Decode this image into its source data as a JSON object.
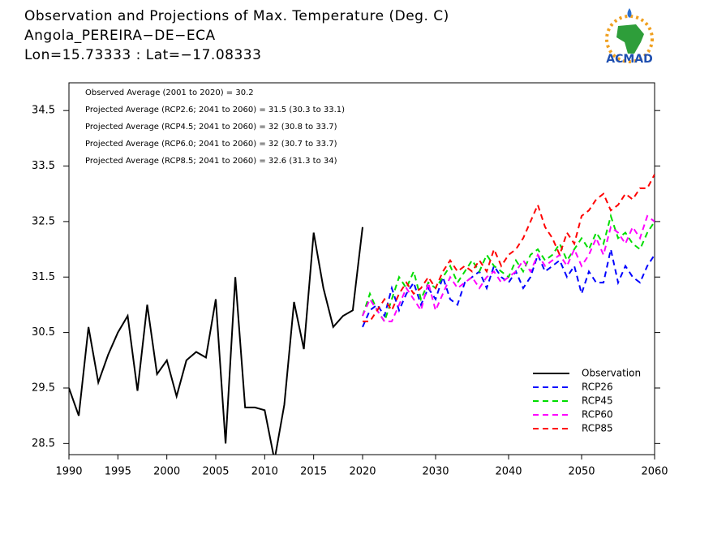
{
  "chart_data": {
    "type": "line",
    "title": "Observation and Projections of Max. Temperature (Deg. C)",
    "subtitle": "Angola_PEREIRA−DE−ECA",
    "location": "Lon=15.73333 : Lat=−17.08333",
    "logo_text": "ACMAD",
    "annotations": [
      "Observed Average (2001 to 2020) = 30.2",
      "Projected Average (RCP2.6; 2041 to 2060) = 31.5 (30.3 to 33.1)",
      "Projected Average (RCP4.5; 2041 to 2060) = 32 (30.8 to 33.7)",
      "Projected Average (RCP6.0; 2041 to 2060) = 32 (30.7 to 33.7)",
      "Projected Average (RCP8.5; 2041 to 2060) = 32.6 (31.3 to 34)"
    ],
    "x": [
      1990,
      1991,
      1992,
      1993,
      1994,
      1995,
      1996,
      1997,
      1998,
      1999,
      2000,
      2001,
      2002,
      2003,
      2004,
      2005,
      2006,
      2007,
      2008,
      2009,
      2010,
      2011,
      2012,
      2013,
      2014,
      2015,
      2016,
      2017,
      2018,
      2019,
      2020,
      2021,
      2022,
      2023,
      2024,
      2025,
      2026,
      2027,
      2028,
      2029,
      2030,
      2031,
      2032,
      2033,
      2034,
      2035,
      2036,
      2037,
      2038,
      2039,
      2040,
      2041,
      2042,
      2043,
      2044,
      2045,
      2046,
      2047,
      2048,
      2049,
      2050,
      2051,
      2052,
      2053,
      2054,
      2055,
      2056,
      2057,
      2058,
      2059,
      2060
    ],
    "xlim": [
      1990,
      2060
    ],
    "xticks": [
      1990,
      1995,
      2000,
      2005,
      2010,
      2015,
      2020,
      2030,
      2040,
      2050,
      2060
    ],
    "ylim": [
      28.3,
      35.0
    ],
    "yticks": [
      28.5,
      29.5,
      30.5,
      31.5,
      32.5,
      33.5,
      34.5
    ],
    "legend": "lower right",
    "series": [
      {
        "name": "Observation",
        "color": "#000000",
        "linestyle": "solid",
        "values": [
          29.5,
          29.0,
          30.6,
          29.6,
          30.1,
          30.5,
          30.8,
          29.45,
          31.0,
          29.75,
          30.0,
          29.35,
          30.0,
          30.15,
          30.05,
          31.1,
          28.5,
          31.5,
          29.15,
          29.15,
          29.1,
          28.2,
          29.2,
          31.05,
          30.2,
          32.3,
          31.3,
          30.6,
          30.8,
          30.9,
          32.4,
          null,
          null,
          null,
          null,
          null,
          null,
          null,
          null,
          null,
          null,
          null,
          null,
          null,
          null,
          null,
          null,
          null,
          null,
          null,
          null,
          null,
          null,
          null,
          null,
          null,
          null,
          null,
          null,
          null,
          null,
          null,
          null,
          null,
          null,
          null,
          null,
          null,
          null,
          null,
          null
        ]
      },
      {
        "name": "RCP26",
        "color": "#0000ff",
        "linestyle": "dashed",
        "values": [
          null,
          null,
          null,
          null,
          null,
          null,
          null,
          null,
          null,
          null,
          null,
          null,
          null,
          null,
          null,
          null,
          null,
          null,
          null,
          null,
          null,
          null,
          null,
          null,
          null,
          null,
          null,
          null,
          null,
          null,
          30.6,
          30.9,
          31.0,
          30.8,
          31.3,
          30.9,
          31.2,
          31.4,
          31.0,
          31.3,
          31.1,
          31.5,
          31.1,
          31.0,
          31.4,
          31.5,
          31.6,
          31.3,
          31.7,
          31.5,
          31.4,
          31.6,
          31.3,
          31.5,
          31.9,
          31.6,
          31.7,
          31.8,
          31.5,
          31.7,
          31.2,
          31.6,
          31.4,
          31.4,
          32.0,
          31.4,
          31.7,
          31.5,
          31.4,
          31.7,
          31.9
        ]
      },
      {
        "name": "RCP45",
        "color": "#00dd00",
        "linestyle": "dashed",
        "values": [
          null,
          null,
          null,
          null,
          null,
          null,
          null,
          null,
          null,
          null,
          null,
          null,
          null,
          null,
          null,
          null,
          null,
          null,
          null,
          null,
          null,
          null,
          null,
          null,
          null,
          null,
          null,
          null,
          null,
          null,
          30.8,
          31.2,
          30.9,
          30.7,
          31.1,
          31.5,
          31.3,
          31.6,
          31.1,
          31.4,
          31.3,
          31.5,
          31.7,
          31.4,
          31.6,
          31.8,
          31.6,
          31.9,
          31.7,
          31.6,
          31.5,
          31.8,
          31.6,
          31.9,
          32.0,
          31.8,
          31.9,
          32.1,
          31.8,
          32.0,
          32.2,
          32.0,
          32.3,
          32.1,
          32.6,
          32.2,
          32.3,
          32.1,
          32.0,
          32.3,
          32.5
        ]
      },
      {
        "name": "RCP60",
        "color": "#ff00ff",
        "linestyle": "dashed",
        "values": [
          null,
          null,
          null,
          null,
          null,
          null,
          null,
          null,
          null,
          null,
          null,
          null,
          null,
          null,
          null,
          null,
          null,
          null,
          null,
          null,
          null,
          null,
          null,
          null,
          null,
          null,
          null,
          null,
          null,
          null,
          30.8,
          31.1,
          30.9,
          30.7,
          30.7,
          31.0,
          31.3,
          31.1,
          30.9,
          31.4,
          30.9,
          31.2,
          31.5,
          31.3,
          31.4,
          31.5,
          31.3,
          31.5,
          31.6,
          31.4,
          31.5,
          31.6,
          31.8,
          31.6,
          31.9,
          31.7,
          31.8,
          31.9,
          31.7,
          32.0,
          31.7,
          31.9,
          32.2,
          31.9,
          32.4,
          32.3,
          32.1,
          32.4,
          32.2,
          32.6,
          32.5
        ]
      },
      {
        "name": "RCP85",
        "color": "#ff0000",
        "linestyle": "dashed",
        "values": [
          null,
          null,
          null,
          null,
          null,
          null,
          null,
          null,
          null,
          null,
          null,
          null,
          null,
          null,
          null,
          null,
          null,
          null,
          null,
          null,
          null,
          null,
          null,
          null,
          null,
          null,
          null,
          null,
          null,
          null,
          30.7,
          30.7,
          30.9,
          31.1,
          30.9,
          31.2,
          31.4,
          31.2,
          31.3,
          31.5,
          31.3,
          31.6,
          31.8,
          31.6,
          31.7,
          31.6,
          31.8,
          31.6,
          32.0,
          31.7,
          31.9,
          32.0,
          32.2,
          32.5,
          32.8,
          32.4,
          32.2,
          31.9,
          32.3,
          32.1,
          32.6,
          32.7,
          32.9,
          33.0,
          32.7,
          32.8,
          33.0,
          32.9,
          33.1,
          33.1,
          33.35
        ]
      }
    ]
  }
}
